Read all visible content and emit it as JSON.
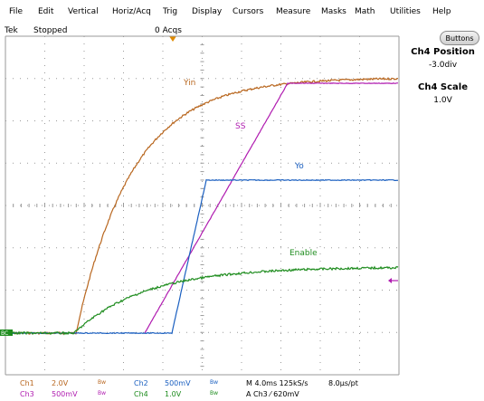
{
  "menu": [
    "File",
    "Edit",
    "Vertical",
    "Horiz/Acq",
    "Trig",
    "Display",
    "Cursors",
    "Measure",
    "Masks",
    "Math",
    "Utilities",
    "Help"
  ],
  "status": {
    "brand": "Tek",
    "state": "Stopped",
    "acqs": "0 Acqs"
  },
  "side_panel": {
    "buttons_label": "Buttons",
    "position_title": "Ch4 Position",
    "position_value": "-3.0div",
    "scale_title": "Ch4 Scale",
    "scale_value": "1.0V"
  },
  "traces": {
    "yin": "Yin",
    "ss": "SS",
    "yo": "Yo",
    "enable": "Enable",
    "gnd_marker": "BC"
  },
  "readout": {
    "ch1": "Ch1",
    "ch1_scale": "2.0V",
    "ch1_bw": "Bw",
    "ch2": "Ch2",
    "ch2_scale": "500mV",
    "ch2_bw": "Bw",
    "ch3": "Ch3",
    "ch3_scale": "500mV",
    "ch3_bw": "Bw",
    "ch4": "Ch4",
    "ch4_scale": "1.0V",
    "ch4_bw": "Bw",
    "timebase": "M 4.0ms 125kS/s",
    "pts": "8.0µs/pt",
    "trigger": "A  Ch3  ⁄  620mV"
  },
  "colors": {
    "yin": "#b8661e",
    "ss": "#b01cb0",
    "yo": "#1a5fc0",
    "enable": "#1e8c1e",
    "grid": "#9a9a9a",
    "marker": "#e08a00"
  }
}
